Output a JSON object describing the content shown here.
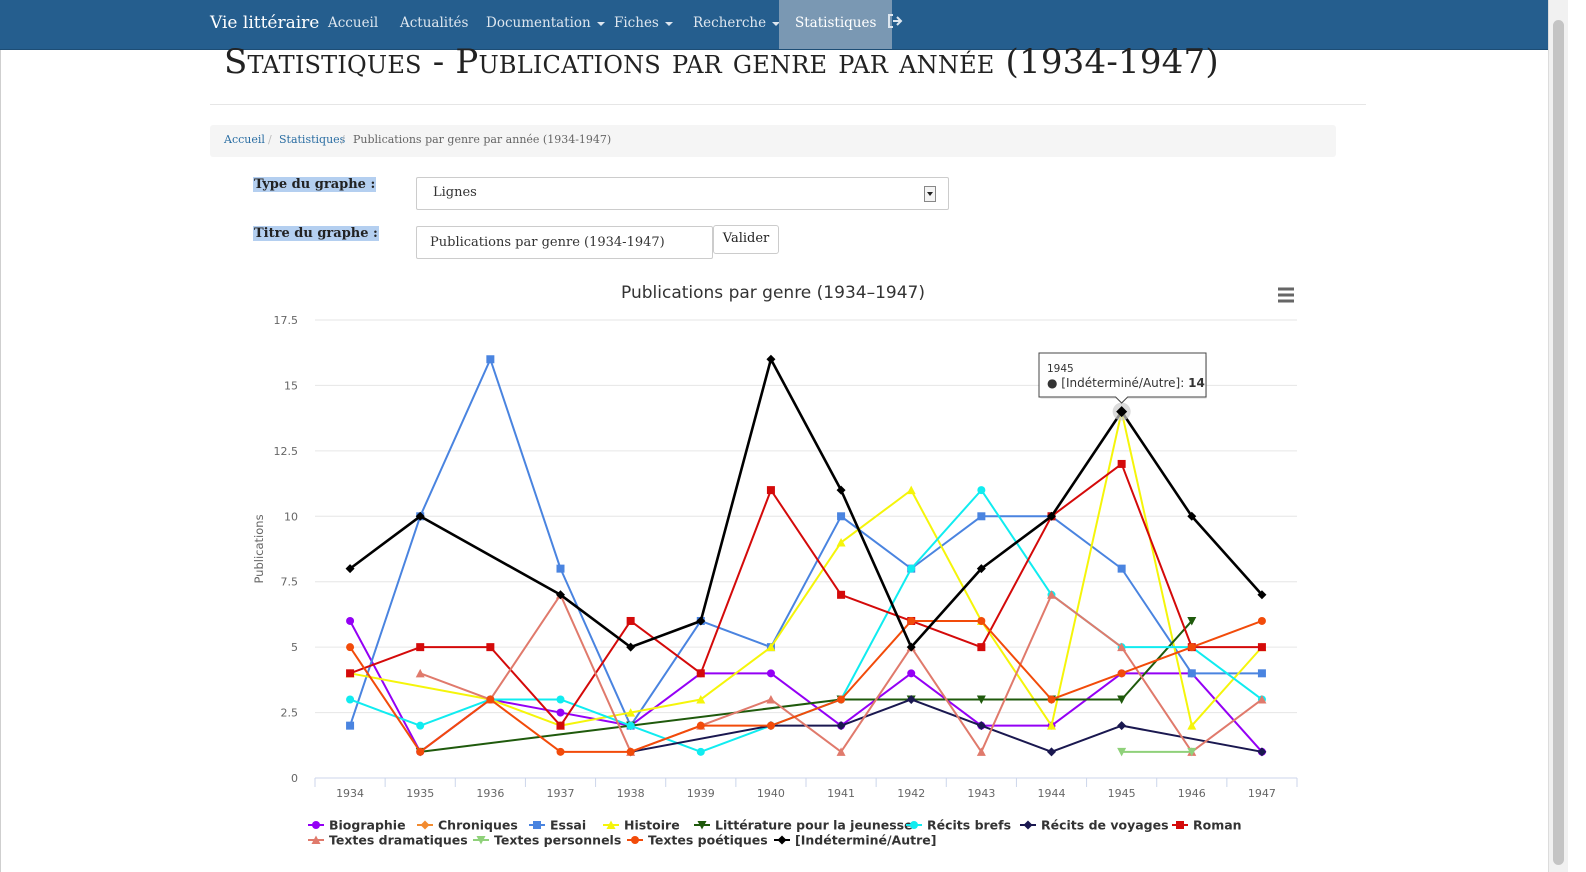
{
  "navbar": {
    "brand": "Vie littéraire",
    "items": [
      {
        "label": "Accueil"
      },
      {
        "label": "Actualités"
      },
      {
        "label": "Documentation"
      },
      {
        "label": "Fiches"
      },
      {
        "label": "Recherche"
      },
      {
        "label": "Statistiques"
      }
    ],
    "colors": {
      "background": "#255e8e",
      "active": "#7a98b3"
    }
  },
  "page": {
    "title": "Statistiques - Publications par genre par année (1934-1947)"
  },
  "breadcrumb": {
    "home": "Accueil",
    "section": "Statistiques",
    "current": "Publications par genre par année (1934-1947)",
    "separator": "/"
  },
  "form": {
    "type_label": "Type du graphe :",
    "type_value": "Lignes",
    "title_label": "Titre du graphe :",
    "title_value": "Publications par genre (1934-1947)",
    "submit_label": "Valider"
  },
  "chart_data": {
    "type": "line",
    "title": "Publications par genre (1934–1947)",
    "ylabel": "Publications",
    "xlabel": "",
    "categories": [
      "1934",
      "1935",
      "1936",
      "1937",
      "1938",
      "1939",
      "1940",
      "1941",
      "1942",
      "1943",
      "1944",
      "1945",
      "1946",
      "1947"
    ],
    "ylim": [
      0,
      17.5
    ],
    "yticks": [
      0,
      2.5,
      5,
      7.5,
      10,
      12.5,
      15,
      17.5
    ],
    "ytick_labels": [
      "0",
      "2.5",
      "5",
      "7.5",
      "10",
      "12.5",
      "15",
      "17.5"
    ],
    "grid": true,
    "legend_position": "bottom",
    "series": [
      {
        "name": "Biographie",
        "color": "#9400f5",
        "marker": "circle",
        "values": [
          6,
          1,
          3,
          2.5,
          2,
          4,
          4,
          2,
          4,
          2,
          2,
          4,
          4,
          1
        ]
      },
      {
        "name": "Chroniques",
        "color": "#f28b30",
        "marker": "diamond",
        "values": [
          null,
          null,
          null,
          null,
          null,
          null,
          null,
          null,
          null,
          null,
          null,
          null,
          null,
          null
        ]
      },
      {
        "name": "Essai",
        "color": "#4a84e0",
        "marker": "square",
        "values": [
          2,
          10,
          16,
          8,
          2,
          6,
          5,
          10,
          8,
          10,
          10,
          8,
          4,
          4
        ]
      },
      {
        "name": "Histoire",
        "color": "#f5f50a",
        "marker": "triangle",
        "values": [
          4,
          null,
          3,
          2,
          2.5,
          3,
          5,
          9,
          11,
          6,
          2,
          14,
          2,
          5
        ]
      },
      {
        "name": "Littérature pour la jeunesse",
        "color": "#1f5a0c",
        "marker": "triangle-down",
        "values": [
          null,
          1,
          null,
          null,
          2,
          null,
          null,
          3,
          3,
          3,
          3,
          3,
          6,
          null
        ]
      },
      {
        "name": "Récits brefs",
        "color": "#10ecf0",
        "marker": "circle",
        "values": [
          3,
          2,
          3,
          3,
          2,
          1,
          2,
          3,
          8,
          11,
          7,
          5,
          5,
          3
        ]
      },
      {
        "name": "Récits de voyages",
        "color": "#1a1850",
        "marker": "diamond",
        "values": [
          null,
          null,
          null,
          null,
          1,
          null,
          2,
          2,
          3,
          2,
          1,
          2,
          null,
          1
        ]
      },
      {
        "name": "Roman",
        "color": "#d40a0a",
        "marker": "square",
        "values": [
          4,
          5,
          5,
          2,
          6,
          4,
          11,
          7,
          6,
          5,
          10,
          12,
          5,
          5
        ]
      },
      {
        "name": "Textes dramatiques",
        "color": "#e07a6c",
        "marker": "triangle",
        "values": [
          null,
          4,
          3,
          7,
          1,
          2,
          3,
          1,
          5,
          1,
          7,
          5,
          1,
          3
        ]
      },
      {
        "name": "Textes personnels",
        "color": "#8fd17a",
        "marker": "triangle-down",
        "values": [
          null,
          null,
          null,
          null,
          null,
          null,
          null,
          null,
          null,
          null,
          null,
          1,
          1,
          null
        ]
      },
      {
        "name": "Textes poétiques",
        "color": "#f24b0a",
        "marker": "circle",
        "values": [
          5,
          1,
          3,
          1,
          1,
          2,
          2,
          3,
          6,
          6,
          3,
          4,
          5,
          6
        ]
      },
      {
        "name": "[Indéterminé/Autre]",
        "color": "#000000",
        "marker": "diamond",
        "values": [
          8,
          10,
          null,
          7,
          5,
          6,
          16,
          11,
          5,
          8,
          10,
          14,
          10,
          7
        ]
      }
    ],
    "tooltip": {
      "category": "1945",
      "series": "[Indéterminé/Autre]",
      "label": "[Indéterminé/Autre]",
      "value": "14"
    }
  }
}
